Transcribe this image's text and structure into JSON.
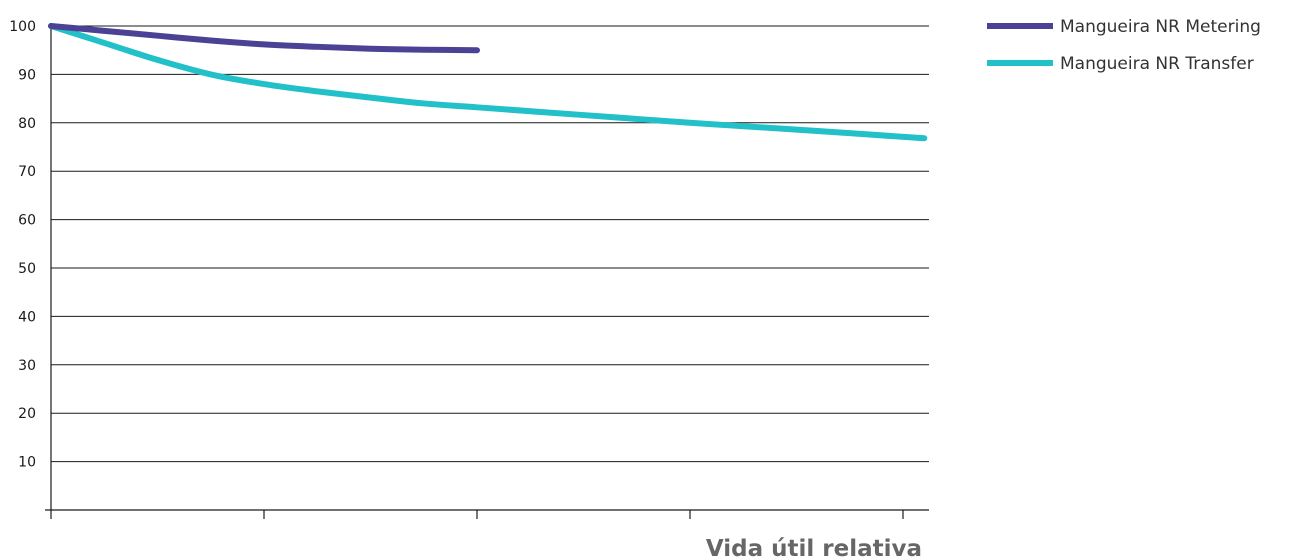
{
  "chart_data": {
    "type": "line",
    "title": "",
    "xlabel": "Vida útil relativa",
    "ylabel": "",
    "ylim": [
      0,
      100
    ],
    "yticks": [
      10,
      20,
      30,
      40,
      50,
      60,
      70,
      80,
      90,
      100
    ],
    "xlim": [
      0,
      4.1
    ],
    "xticks": [
      0,
      1,
      2,
      3,
      4
    ],
    "grid": true,
    "legend": "top-right",
    "series": [
      {
        "name": "Mangueira NR Metering",
        "color": "#4b4296",
        "x": [
          0,
          0.25,
          0.5,
          0.75,
          1.0,
          1.25,
          1.5,
          1.75,
          2.0
        ],
        "y": [
          100,
          99.0,
          98.0,
          97.0,
          96.2,
          95.7,
          95.3,
          95.1,
          95.0
        ]
      },
      {
        "name": "Mangueira NR Transfer",
        "color": "#22c0c8",
        "x": [
          0,
          0.25,
          0.5,
          0.75,
          1.0,
          1.25,
          1.5,
          1.75,
          2.0,
          2.5,
          3.0,
          3.5,
          4.1
        ],
        "y": [
          100,
          96.5,
          93.0,
          90.0,
          88.0,
          86.5,
          85.2,
          84.0,
          83.2,
          81.6,
          80.0,
          78.6,
          76.8
        ]
      }
    ]
  }
}
